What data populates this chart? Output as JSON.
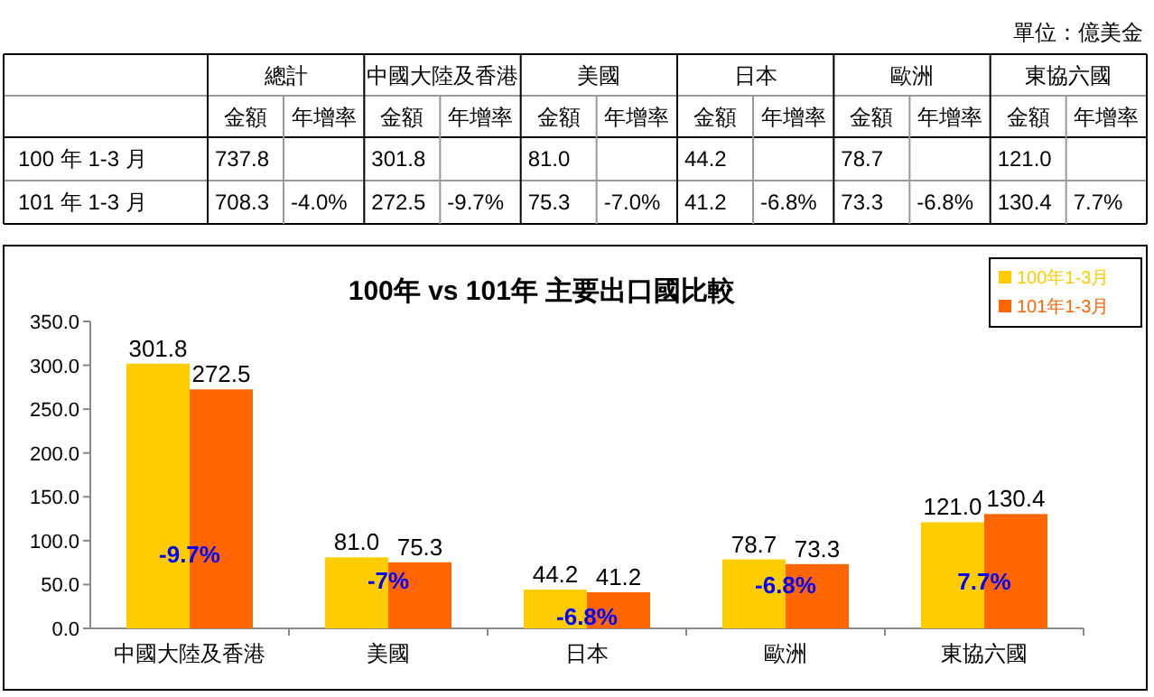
{
  "chart_data": [
    {
      "type": "other",
      "title": "單位：億美金",
      "categories": [
        "總計",
        "中國大陸及香港",
        "美國",
        "日本",
        "歐洲",
        "東協六國"
      ],
      "annotations": [
        "金額",
        "年增率",
        "金額",
        "年增率",
        "金額",
        "年增率",
        "金額",
        "年增率",
        "金額",
        "年增率",
        "金額",
        "年增率"
      ],
      "y_categories": [
        "100 年 1-3 月",
        "101 年 1-3 月"
      ],
      "cell_labels": [
        [
          "737.8",
          null,
          "301.8",
          null,
          "81.0",
          null,
          "44.2",
          null,
          "78.7",
          null,
          "121.0",
          null
        ],
        [
          "708.3",
          "-4.0%",
          "272.5",
          "-9.7%",
          "75.3",
          "-7.0%",
          "41.2",
          "-6.8%",
          "73.3",
          "-6.8%",
          "130.4",
          "7.7%"
        ]
      ]
    },
    {
      "type": "bar",
      "title": "100年 vs 101年 主要出口國比較",
      "categories": [
        "中國大陸及香港",
        "美國",
        "日本",
        "歐洲",
        "東協六國"
      ],
      "series": [
        {
          "name": "100年1-3月",
          "color": "#ffcc00",
          "values": [
            301.8,
            81.0,
            44.2,
            78.7,
            121.0
          ],
          "value_labels": [
            "301.8",
            "81.0",
            "44.2",
            "78.7",
            "121.0"
          ]
        },
        {
          "name": "101年1-3月",
          "color": "#ff6600",
          "values": [
            272.5,
            75.3,
            41.2,
            73.3,
            130.4
          ],
          "value_labels": [
            "272.5",
            "75.3",
            "41.2",
            "73.3",
            "130.4"
          ]
        }
      ],
      "ylim": [
        0,
        350
      ],
      "yticks": [
        {
          "value": 0,
          "label": "0.0"
        },
        {
          "value": 50,
          "label": "50.0"
        },
        {
          "value": 100,
          "label": "100.0"
        },
        {
          "value": 150,
          "label": "150.0"
        },
        {
          "value": 200,
          "label": "200.0"
        },
        {
          "value": 250,
          "label": "250.0"
        },
        {
          "value": 300,
          "label": "300.0"
        },
        {
          "value": 350,
          "label": "350.0"
        }
      ],
      "legend": "top right",
      "annotations": [
        {
          "text": "-9.7%",
          "x": "中國大陸及香港",
          "y": 85
        },
        {
          "text": "-7%",
          "x": "美國",
          "y": 56
        },
        {
          "text": "-6.8%",
          "x": "日本",
          "y": 14
        },
        {
          "text": "-6.8%",
          "x": "歐洲",
          "y": 50
        },
        {
          "text": "7.7%",
          "x": "東協六國",
          "y": 55
        }
      ]
    }
  ]
}
